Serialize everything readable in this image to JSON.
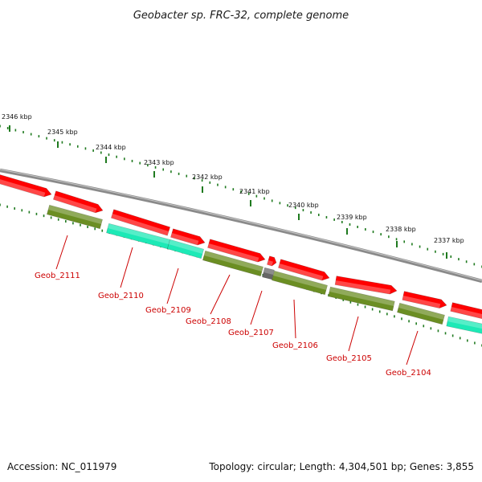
{
  "title": "Geobacter sp. FRC-32, complete genome",
  "accession": "Accession: NC_011979",
  "summary": "Topology: circular; Length: 4,304,501 bp; Genes: 3,855",
  "ticks": [
    "2346 kbp",
    "2345 kbp",
    "2344 kbp",
    "2343 kbp",
    "2342 kbp",
    "2341 kbp",
    "2340 kbp",
    "2339 kbp",
    "2338 kbp",
    "2337 kbp"
  ],
  "gene_labels": [
    "Geob_2111",
    "Geob_2110",
    "Geob_2109",
    "Geob_2108",
    "Geob_2107",
    "Geob_2106",
    "Geob_2105",
    "Geob_2104"
  ],
  "colors": {
    "backbone": "#7a7a7a",
    "forward_cds": "#ff0000",
    "reverse_olive": "#6b8e23",
    "reverse_teal": "#1de9b6",
    "unknown_gray": "#666666",
    "tick": "#1f7a1f",
    "label_red": "#cc0000"
  }
}
